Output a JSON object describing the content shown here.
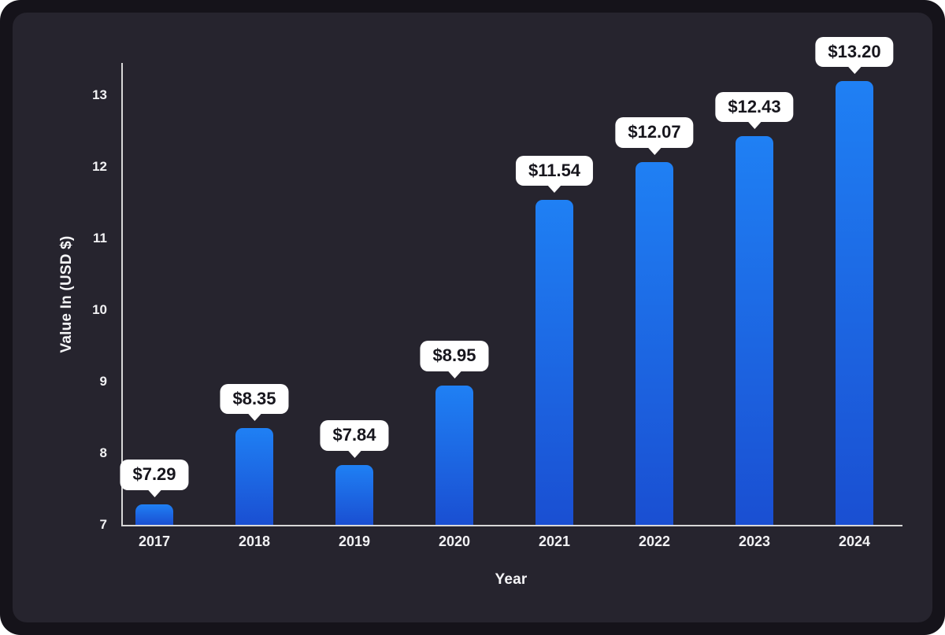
{
  "card": {
    "frame_color": "#15131a",
    "panel_color": "#26242e"
  },
  "chart_data": {
    "type": "bar",
    "title": "",
    "categories": [
      "2017",
      "2018",
      "2019",
      "2020",
      "2021",
      "2022",
      "2023",
      "2024"
    ],
    "values": [
      7.29,
      8.35,
      7.84,
      8.95,
      11.54,
      12.07,
      12.43,
      13.2
    ],
    "value_labels": [
      "$7.29",
      "$8.35",
      "$7.84",
      "$8.95",
      "$11.54",
      "$12.07",
      "$12.43",
      "$13.20"
    ],
    "xlabel": "Year",
    "ylabel": "Value In (USD $)",
    "yticks": [
      7,
      8,
      9,
      10,
      11,
      12,
      13
    ],
    "ylim": [
      7,
      13.45
    ],
    "grid": false,
    "legend": "none",
    "bar_color_top": "#1f80f4",
    "bar_color_bottom": "#1a4fd2",
    "axis_color": "#d8d8d8",
    "tick_text_color": "#f2f2f4",
    "tooltip_bg": "#ffffff",
    "tooltip_text_color": "#17161d"
  }
}
